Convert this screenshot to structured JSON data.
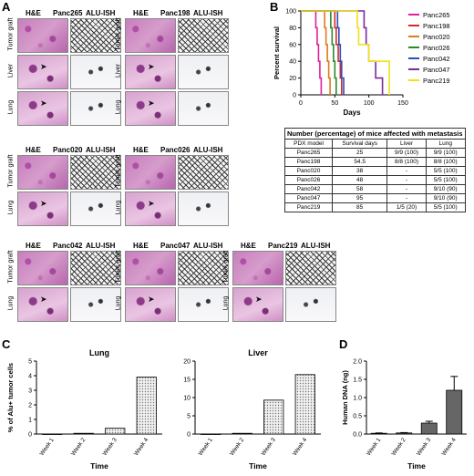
{
  "panels": {
    "A": "A",
    "B": "B",
    "C": "C",
    "D": "D"
  },
  "panelA": {
    "stain_he": "H&E",
    "stain_ish": "ALU-ISH",
    "row_tumor": "Tumor graft",
    "row_liver": "Liver",
    "row_lung": "Lung",
    "models": [
      "Panc265",
      "Panc198",
      "Panc020",
      "Panc026",
      "Panc042",
      "Panc047",
      "Panc219"
    ]
  },
  "chart_data": [
    {
      "type": "line",
      "panel": "B",
      "xlabel": "Days",
      "ylabel": "Percent survival",
      "xlim": [
        0,
        150
      ],
      "ylim": [
        0,
        100
      ],
      "xticks": [
        0,
        50,
        100,
        150
      ],
      "yticks": [
        0,
        20,
        40,
        60,
        80,
        100
      ],
      "legend_position": "right",
      "series": [
        {
          "name": "Panc265",
          "color": "#e0209a",
          "x": [
            0,
            20,
            22,
            24,
            26,
            28,
            30
          ],
          "y": [
            100,
            100,
            80,
            60,
            40,
            20,
            0
          ]
        },
        {
          "name": "Panc198",
          "color": "#d62a2a",
          "x": [
            0,
            48,
            50,
            52,
            55,
            58,
            60
          ],
          "y": [
            100,
            100,
            80,
            60,
            40,
            20,
            0
          ]
        },
        {
          "name": "Panc020",
          "color": "#e07a1a",
          "x": [
            0,
            33,
            35,
            37,
            39,
            41,
            43
          ],
          "y": [
            100,
            100,
            80,
            60,
            40,
            20,
            0
          ]
        },
        {
          "name": "Panc026",
          "color": "#2a8a2a",
          "x": [
            0,
            42,
            44,
            46,
            48,
            50,
            52
          ],
          "y": [
            100,
            100,
            80,
            60,
            40,
            20,
            0
          ]
        },
        {
          "name": "Panc042",
          "color": "#2a4fbf",
          "x": [
            0,
            52,
            54,
            56,
            58,
            60,
            63
          ],
          "y": [
            100,
            100,
            80,
            60,
            40,
            20,
            0
          ]
        },
        {
          "name": "Panc047",
          "color": "#7a2aa0",
          "x": [
            0,
            90,
            93,
            96,
            100,
            110,
            120
          ],
          "y": [
            100,
            100,
            80,
            60,
            40,
            20,
            0
          ]
        },
        {
          "name": "Panc219",
          "color": "#f2e01a",
          "x": [
            0,
            80,
            83,
            85,
            100,
            115,
            130
          ],
          "y": [
            100,
            100,
            80,
            60,
            40,
            40,
            0
          ]
        }
      ]
    },
    {
      "type": "table",
      "panel": "B",
      "title": "Number (percentage) of mice affected with metastasis",
      "columns": [
        "PDX model",
        "Survival days",
        "Liver",
        "Lung"
      ],
      "rows": [
        [
          "Panc265",
          "25",
          "9/9 (100)",
          "9/9 (100)"
        ],
        [
          "Panc198",
          "54.5",
          "8/8 (100)",
          "8/8 (100)"
        ],
        [
          "Panc020",
          "38",
          "-",
          "5/5 (100)"
        ],
        [
          "Panc026",
          "48",
          "-",
          "5/5 (100)"
        ],
        [
          "Panc042",
          "58",
          "-",
          "9/10 (90)"
        ],
        [
          "Panc047",
          "95",
          "-",
          "9/10 (90)"
        ],
        [
          "Panc219",
          "85",
          "1/5 (20)",
          "5/5 (100)"
        ]
      ]
    },
    {
      "type": "bar",
      "panel": "C",
      "title": "Lung",
      "ylabel": "% of Alu+ tumor cells",
      "categories": [
        "Week 1",
        "Week 2",
        "Week 3",
        "Week 4"
      ],
      "values": [
        0.0,
        0.05,
        0.4,
        3.9
      ],
      "ylim": [
        0,
        5
      ],
      "yticks": [
        0,
        1,
        2,
        3,
        4,
        5
      ]
    },
    {
      "type": "bar",
      "panel": "C",
      "title": "Liver",
      "categories": [
        "Week 1",
        "Week 2",
        "Week 3",
        "Week 4"
      ],
      "values": [
        0.0,
        0.2,
        9.3,
        16.3
      ],
      "ylim": [
        0,
        20
      ],
      "yticks": [
        0,
        5,
        10,
        15,
        20
      ]
    },
    {
      "type": "bar",
      "panel": "D",
      "ylabel": "Human DNA (ng)",
      "xlabel": "Time",
      "categories": [
        "Week 1",
        "Week 2",
        "Week 3",
        "Week 4"
      ],
      "values": [
        0.02,
        0.03,
        0.3,
        1.2
      ],
      "errors": [
        0.01,
        0.01,
        0.05,
        0.38
      ],
      "ylim": [
        0,
        2.0
      ],
      "yticks": [
        0.0,
        0.5,
        1.0,
        1.5,
        2.0
      ]
    }
  ],
  "panelC": {
    "xlabel": "Time",
    "ylabel_suffix": "+"
  }
}
